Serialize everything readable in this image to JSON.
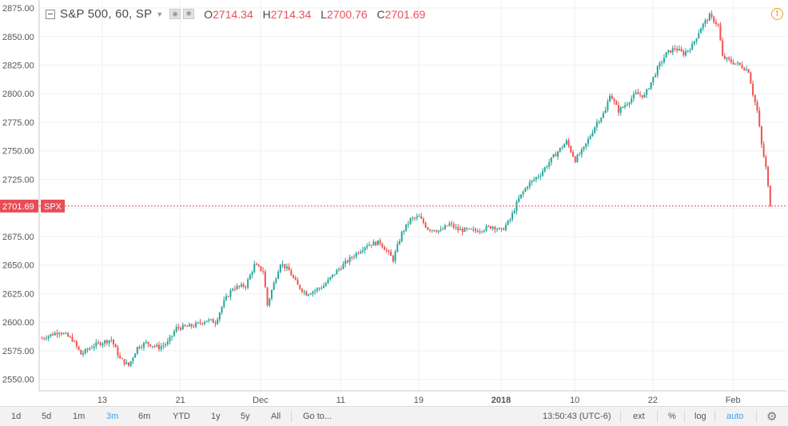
{
  "legend": {
    "symbol": "S&P 500, 60, SP",
    "open_label": "O",
    "open": "2714.34",
    "high_label": "H",
    "high": "2714.34",
    "low_label": "L",
    "low": "2700.76",
    "close_label": "C",
    "close": "2701.69"
  },
  "bottom_bar": {
    "ranges": [
      "1d",
      "5d",
      "1m",
      "3m",
      "6m",
      "YTD",
      "1y",
      "5y",
      "All"
    ],
    "active_range": "3m",
    "goto": "Go to...",
    "clock": "13:50:43 (UTC-6)",
    "ext": "ext",
    "percent": "%",
    "log": "log",
    "auto": "auto"
  },
  "colors": {
    "up": "#26a69a",
    "down": "#ef5350",
    "price_line": "#e84c55",
    "grid": "#eef0f2",
    "axis_text": "#555555"
  },
  "chart_data": {
    "type": "candlestick",
    "price_label": "2701.69",
    "price_tag": "SPX",
    "last_price": 2701.69,
    "y_ticks": [
      2550,
      2575,
      2600,
      2625,
      2650,
      2675,
      2700,
      2725,
      2750,
      2775,
      2800,
      2825,
      2850,
      2875
    ],
    "y_tick_labels": [
      "2550.00",
      "2575.00",
      "2600.00",
      "2625.00",
      "2650.00",
      "2675.00",
      "2700.00",
      "2725.00",
      "2750.00",
      "2775.00",
      "2800.00",
      "2825.00",
      "2850.00",
      "2875.00"
    ],
    "ylim": [
      2540,
      2882
    ],
    "x_ticks": [
      {
        "label": "13",
        "index": 28
      },
      {
        "label": "21",
        "index": 64
      },
      {
        "label": "Dec",
        "index": 101
      },
      {
        "label": "11",
        "index": 138
      },
      {
        "label": "19",
        "index": 174
      },
      {
        "label": "2018",
        "index": 212
      },
      {
        "label": "10",
        "index": 246
      },
      {
        "label": "22",
        "index": 282
      },
      {
        "label": "Feb",
        "index": 319
      }
    ],
    "bar_count": 337,
    "series": [
      {
        "anchors": [
          [
            0,
            2586
          ],
          [
            8,
            2592
          ],
          [
            14,
            2585
          ],
          [
            18,
            2572
          ],
          [
            24,
            2580
          ],
          [
            32,
            2585
          ],
          [
            36,
            2568
          ],
          [
            40,
            2562
          ],
          [
            44,
            2578
          ],
          [
            48,
            2582
          ],
          [
            54,
            2578
          ],
          [
            58,
            2582
          ],
          [
            62,
            2595
          ],
          [
            70,
            2597
          ],
          [
            76,
            2602
          ],
          [
            80,
            2600
          ],
          [
            84,
            2618
          ],
          [
            88,
            2630
          ],
          [
            94,
            2632
          ],
          [
            98,
            2650
          ],
          [
            102,
            2645
          ],
          [
            104,
            2615
          ],
          [
            106,
            2628
          ],
          [
            110,
            2652
          ],
          [
            114,
            2645
          ],
          [
            118,
            2632
          ],
          [
            122,
            2625
          ],
          [
            126,
            2628
          ],
          [
            130,
            2632
          ],
          [
            136,
            2645
          ],
          [
            140,
            2652
          ],
          [
            146,
            2662
          ],
          [
            150,
            2668
          ],
          [
            156,
            2670
          ],
          [
            160,
            2660
          ],
          [
            162,
            2655
          ],
          [
            166,
            2678
          ],
          [
            170,
            2690
          ],
          [
            174,
            2692
          ],
          [
            178,
            2682
          ],
          [
            184,
            2680
          ],
          [
            188,
            2686
          ],
          [
            192,
            2681
          ],
          [
            200,
            2680
          ],
          [
            208,
            2684
          ],
          [
            212,
            2680
          ],
          [
            216,
            2690
          ],
          [
            220,
            2708
          ],
          [
            224,
            2720
          ],
          [
            230,
            2730
          ],
          [
            236,
            2745
          ],
          [
            242,
            2758
          ],
          [
            246,
            2742
          ],
          [
            250,
            2752
          ],
          [
            256,
            2775
          ],
          [
            260,
            2785
          ],
          [
            262,
            2800
          ],
          [
            266,
            2785
          ],
          [
            270,
            2792
          ],
          [
            274,
            2800
          ],
          [
            278,
            2798
          ],
          [
            284,
            2822
          ],
          [
            288,
            2835
          ],
          [
            292,
            2840
          ],
          [
            296,
            2835
          ],
          [
            300,
            2842
          ],
          [
            304,
            2858
          ],
          [
            308,
            2868
          ],
          [
            312,
            2860
          ],
          [
            314,
            2832
          ],
          [
            318,
            2828
          ],
          [
            322,
            2825
          ],
          [
            326,
            2820
          ],
          [
            328,
            2800
          ],
          [
            330,
            2785
          ],
          [
            332,
            2755
          ],
          [
            334,
            2735
          ],
          [
            336,
            2702
          ]
        ]
      }
    ]
  }
}
